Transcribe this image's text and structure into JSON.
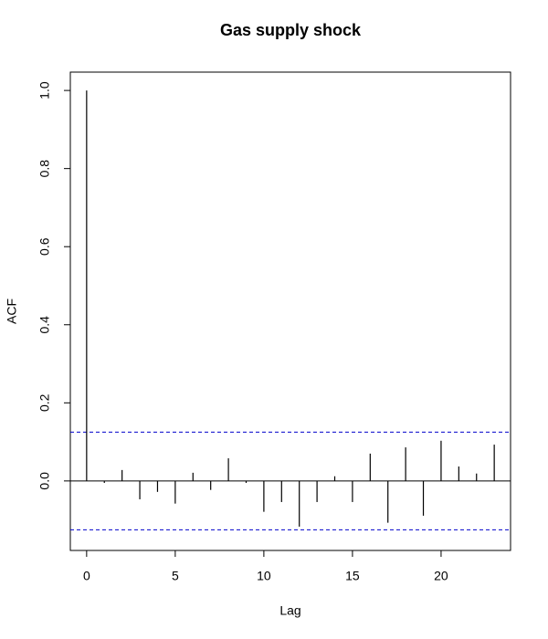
{
  "chart_data": {
    "type": "acf",
    "title": "Gas supply shock",
    "x_label": "Lag",
    "y_label": "ACF",
    "x": [
      0,
      1,
      2,
      3,
      4,
      5,
      6,
      7,
      8,
      9,
      10,
      11,
      12,
      13,
      14,
      15,
      16,
      17,
      18,
      19,
      20,
      21,
      22,
      23
    ],
    "values": [
      1.0,
      -0.005,
      0.028,
      -0.047,
      -0.028,
      -0.058,
      0.021,
      -0.023,
      0.058,
      -0.005,
      -0.079,
      -0.054,
      -0.117,
      -0.054,
      0.012,
      -0.054,
      0.07,
      -0.107,
      0.086,
      -0.089,
      0.103,
      0.037,
      0.019,
      0.093
    ],
    "color": "#000000",
    "confidence_bounds": [
      0.125,
      -0.125
    ],
    "confidence_color": "#0000cc",
    "xlim": [
      -0.92,
      23.92
    ],
    "ylim": [
      -0.178,
      1.047
    ],
    "xticks": [
      0,
      5,
      10,
      15,
      20
    ],
    "yticks": [
      {
        "value": 0,
        "label": "0.0"
      },
      0.2,
      0.4,
      0.6,
      0.8,
      {
        "value": 1,
        "label": "1.0"
      }
    ]
  }
}
